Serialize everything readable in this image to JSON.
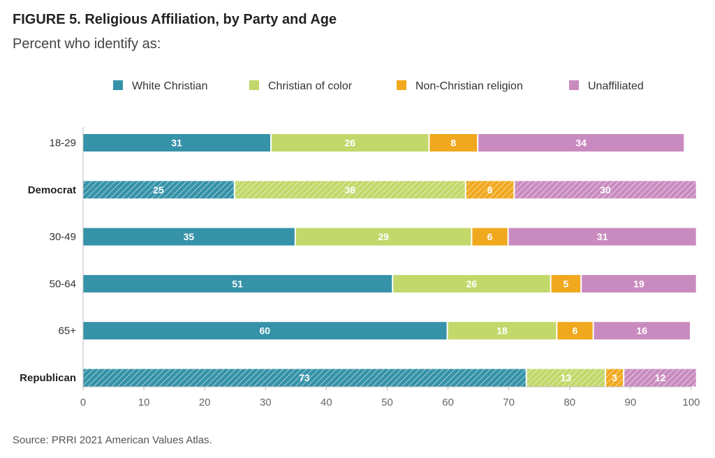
{
  "figure": {
    "title": "FIGURE 5.  Religious Affiliation, by Party and Age",
    "subtitle": "Percent who identify as:",
    "source": "Source: PRRI 2021 American Values Atlas."
  },
  "chart_data": {
    "type": "bar",
    "orientation": "horizontal",
    "stacked": true,
    "categories": [
      "18-29",
      "Democrat",
      "30-49",
      "50-64",
      "65+",
      "Republican"
    ],
    "bold_categories": [
      "Democrat",
      "Republican"
    ],
    "hatched_categories": [
      "Democrat",
      "Republican"
    ],
    "series": [
      {
        "name": "White Christian",
        "color": "#3592a8",
        "values": [
          31,
          25,
          35,
          51,
          60,
          73
        ]
      },
      {
        "name": "Christian of color",
        "color": "#c2d86a",
        "values": [
          26,
          38,
          29,
          26,
          18,
          13
        ]
      },
      {
        "name": "Non-Christian religion",
        "color": "#f0a81e",
        "values": [
          8,
          8,
          6,
          5,
          6,
          3
        ]
      },
      {
        "name": "Unaffiliated",
        "color": "#c98bbf",
        "values": [
          34,
          30,
          31,
          19,
          16,
          12
        ]
      }
    ],
    "xlim": [
      0,
      100
    ],
    "xticks": [
      0,
      10,
      20,
      30,
      40,
      50,
      60,
      70,
      80,
      90,
      100
    ],
    "legend_position": "top",
    "grid": false
  }
}
